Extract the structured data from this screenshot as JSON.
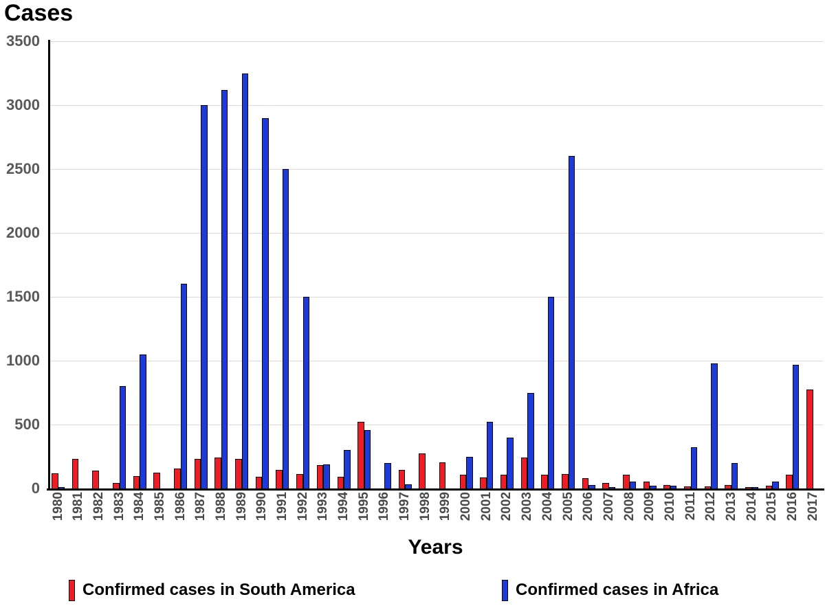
{
  "chart_data": {
    "type": "bar",
    "ylabel": "Cases",
    "xlabel": "Years",
    "ylim": [
      0,
      3500
    ],
    "ytick_step": 500,
    "yticks": [
      0,
      500,
      1000,
      1500,
      2000,
      2500,
      3000,
      3500
    ],
    "grid": true,
    "legend_position": "bottom",
    "categories": [
      "1980",
      "1981",
      "1982",
      "1983",
      "1984",
      "1985",
      "1986",
      "1987",
      "1988",
      "1989",
      "1990",
      "1991",
      "1992",
      "1993",
      "1994",
      "1995",
      "1996",
      "1997",
      "1998",
      "1999",
      "2000",
      "2001",
      "2002",
      "2003",
      "2004",
      "2005",
      "2006",
      "2007",
      "2008",
      "2009",
      "2010",
      "2011",
      "2012",
      "2013",
      "2014",
      "2015",
      "2016",
      "2017"
    ],
    "series": [
      {
        "name": "Confirmed cases in South America",
        "color": "#ee1c25",
        "values": [
          120,
          230,
          140,
          45,
          95,
          125,
          155,
          230,
          240,
          230,
          90,
          145,
          115,
          185,
          90,
          520,
          0,
          145,
          275,
          205,
          105,
          85,
          105,
          240,
          110,
          115,
          80,
          45,
          105,
          55,
          25,
          15,
          15,
          25,
          10,
          20,
          105,
          775
        ]
      },
      {
        "name": "Confirmed cases in Africa",
        "color": "#1c3bd9",
        "values": [
          10,
          0,
          0,
          800,
          1050,
          0,
          1600,
          3000,
          3120,
          3250,
          2900,
          2500,
          1500,
          190,
          300,
          455,
          200,
          35,
          0,
          0,
          250,
          520,
          400,
          750,
          1500,
          2600,
          25,
          10,
          55,
          20,
          20,
          320,
          980,
          200,
          10,
          55,
          970,
          0
        ]
      }
    ]
  },
  "colors": {
    "gridline": "#d9d9d9",
    "axis": "#000000",
    "ytick_label": "#595959",
    "xtick_label": "#4a4a4a",
    "bar_border": "#000000"
  }
}
